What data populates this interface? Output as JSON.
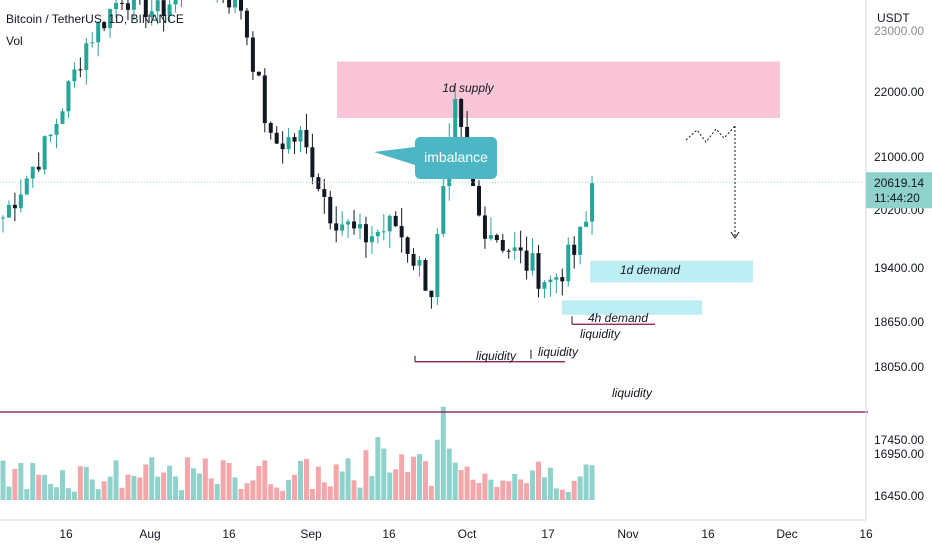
{
  "header": {
    "symbol": "Bitcoin / TetherUS, 1D, BINANCE",
    "volume_label": "Vol"
  },
  "price_axis": {
    "currency": "USDT",
    "ticks": [
      "22000.00",
      "21000.00",
      "20200.00",
      "19400.00",
      "18650.00",
      "18050.00",
      "17450.00",
      "16950.00",
      "16450.00"
    ],
    "top_partial": "23000.00",
    "last_price": "20619.14",
    "countdown": "11:44:20"
  },
  "time_axis": {
    "ticks": [
      "16",
      "Aug",
      "16",
      "Sep",
      "16",
      "Oct",
      "17",
      "Nov",
      "16",
      "Dec",
      "16"
    ]
  },
  "annotations": {
    "supply": "1d supply",
    "imbalance": "imbalance",
    "demand_1d": "1d demand",
    "demand_4h": "4h demand",
    "liquidity": "liquidity"
  },
  "colors": {
    "up": "#26a69a",
    "down": "#131722",
    "vol_up": "#8fd2cb",
    "vol_down": "#f4a7ab",
    "supply_zone": "#f8bbd0",
    "demand_zone": "#b2ebf2",
    "imbalance_bubble": "#4db6c4",
    "liquidity_line": "#880e4f",
    "last_price_line": "#9ad6cf"
  },
  "chart_data": {
    "type": "candlestick",
    "x_range": [
      "Jul 2022",
      "Dec 2022"
    ],
    "y_range": [
      16300,
      23100
    ],
    "scale": "log",
    "last_price": 20619.14,
    "zones": [
      {
        "name": "1d supply",
        "low": 21600,
        "high": 22500
      },
      {
        "name": "1d demand",
        "low": 19200,
        "high": 19500
      },
      {
        "name": "4h demand",
        "low": 18750,
        "high": 18950
      }
    ],
    "levels": [
      {
        "name": "liquidity",
        "price": 17680
      },
      {
        "name": "liquidity",
        "price": 18620
      },
      {
        "name": "liquidity",
        "price": 18120
      }
    ]
  }
}
